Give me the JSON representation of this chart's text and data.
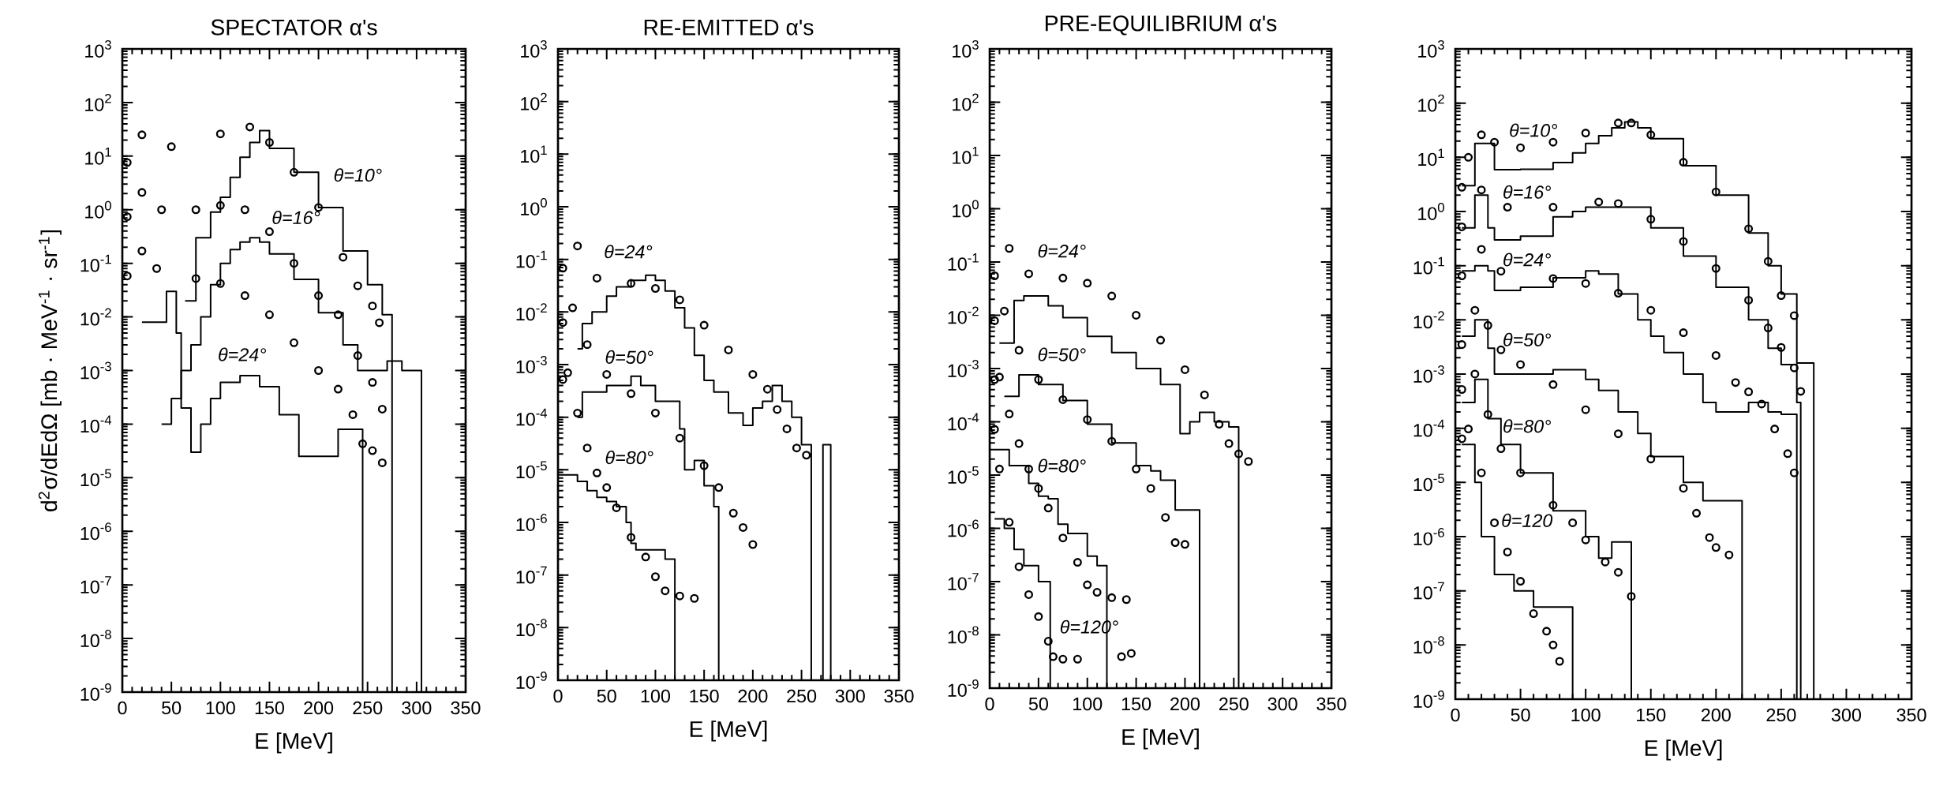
{
  "chart_data": [
    {
      "type": "scatter",
      "title": "SPECTATOR α's",
      "xlabel": "E [MeV]",
      "ylabel": "d$^{2}$σ/dEdΩ [mb · MeV$^{-1}$ · sr$^{-1}$]",
      "log": "y",
      "marker": "circle",
      "xlim": [
        0,
        350
      ],
      "ylim": [
        1e-09,
        1000
      ],
      "xticks": [
        0,
        50,
        100,
        150,
        200,
        250,
        300,
        350
      ],
      "yticks": [
        {
          "value": 1e-09,
          "label": "10$^{-9}$"
        },
        {
          "value": 1e-08,
          "label": "10$^{-8}$"
        },
        {
          "value": 1e-07,
          "label": "10$^{-7}$"
        },
        {
          "value": 1e-06,
          "label": "10$^{-6}$"
        },
        {
          "value": 1e-05,
          "label": "10$^{-5}$"
        },
        {
          "value": 0.0001,
          "label": "10$^{-4}$"
        },
        {
          "value": 0.001,
          "label": "10$^{-3}$"
        },
        {
          "value": 0.01,
          "label": "10$^{-2}$"
        },
        {
          "value": 0.1,
          "label": "10$^{-1}$"
        },
        {
          "value": 1,
          "label": "10$^{0}$"
        },
        {
          "value": 10,
          "label": "10$^{1}$"
        },
        {
          "value": 100,
          "label": "10$^{2}$"
        },
        {
          "value": 1000,
          "label": "10$^{3}$"
        }
      ],
      "series": [
        {
          "color": "#000000",
          "x": [
            5,
            20,
            50,
            100,
            130,
            150,
            175,
            200,
            225,
            240,
            255,
            262
          ],
          "values": [
            7.6,
            25,
            15,
            26,
            35,
            18,
            5,
            1.1,
            0.13,
            0.038,
            0.016,
            0.0078
          ]
        },
        {
          "color": "#000000",
          "x": [
            5,
            20,
            40,
            75,
            100,
            125,
            150,
            175,
            200,
            220,
            240,
            255,
            265
          ],
          "values": [
            0.74,
            2.1,
            1.0,
            1.0,
            1.2,
            1.0,
            0.39,
            0.1,
            0.025,
            0.011,
            0.0019,
            0.0006,
            0.00019
          ]
        },
        {
          "color": "#000000",
          "x": [
            5,
            20,
            35,
            75,
            100,
            125,
            150,
            175,
            200,
            220,
            235,
            245,
            255,
            265
          ],
          "values": [
            0.058,
            0.17,
            0.08,
            0.052,
            0.042,
            0.025,
            0.011,
            0.0033,
            0.001,
            0.00045,
            0.00015,
            4.3e-05,
            3.2e-05,
            1.9e-05
          ]
        },
        {
          "type": "step",
          "marker": "none",
          "color": "#000000",
          "x": [
            64,
            75,
            90,
            100,
            110,
            120,
            130,
            140,
            150,
            175,
            200,
            225,
            250,
            265,
            275
          ],
          "values": [
            0.02,
            0.3,
            0.9,
            1.7,
            4,
            9.5,
            18,
            30,
            14,
            5,
            1.1,
            0.17,
            0.04,
            0.011,
            1e-09
          ]
        },
        {
          "type": "step",
          "marker": "none",
          "color": "#000000",
          "x": [
            40,
            50,
            60,
            70,
            80,
            90,
            100,
            110,
            120,
            130,
            140,
            150,
            175,
            200,
            225,
            240,
            270,
            285,
            305
          ],
          "values": [
            0.0001,
            0.0003,
            0.001,
            0.003,
            0.01,
            0.04,
            0.1,
            0.18,
            0.25,
            0.3,
            0.25,
            0.15,
            0.05,
            0.012,
            0.003,
            0.001,
            0.0015,
            0.001,
            1e-09
          ]
        },
        {
          "type": "step",
          "marker": "none",
          "color": "#000000",
          "x": [
            20,
            45,
            55,
            60,
            70,
            80,
            90,
            100,
            120,
            140,
            160,
            180,
            200,
            220,
            245
          ],
          "values": [
            0.008,
            0.03,
            0.005,
            0.0002,
            3e-05,
            0.0001,
            0.0003,
            0.0006,
            0.0008,
            0.0005,
            0.00015,
            2.5e-05,
            2.5e-05,
            8e-05,
            1e-09
          ]
        }
      ],
      "annotations": [
        "θ=10°",
        "θ=16°",
        "θ=24°"
      ]
    },
    {
      "type": "scatter",
      "title": "RE-EMITTED α's",
      "xlabel": "E [MeV]",
      "log": "y",
      "marker": "circle",
      "xlim": [
        0,
        350
      ],
      "ylim": [
        1e-09,
        1000
      ],
      "xticks": [
        0,
        50,
        100,
        150,
        200,
        250,
        300,
        350
      ],
      "yticks": [
        {
          "value": 1e-09,
          "label": "10$^{-9}$"
        },
        {
          "value": 1e-08,
          "label": "10$^{-8}$"
        },
        {
          "value": 1e-07,
          "label": "10$^{-7}$"
        },
        {
          "value": 1e-06,
          "label": "10$^{-6}$"
        },
        {
          "value": 1e-05,
          "label": "10$^{-5}$"
        },
        {
          "value": 0.0001,
          "label": "10$^{-4}$"
        },
        {
          "value": 0.001,
          "label": "10$^{-3}$"
        },
        {
          "value": 0.01,
          "label": "10$^{-2}$"
        },
        {
          "value": 0.1,
          "label": "10$^{-1}$"
        },
        {
          "value": 1,
          "label": "10$^{0}$"
        },
        {
          "value": 10,
          "label": "10$^{1}$"
        },
        {
          "value": 100,
          "label": "10$^{2}$"
        },
        {
          "value": 1000,
          "label": "10$^{3}$"
        }
      ],
      "series": [
        {
          "color": "#000000",
          "x": [
            5,
            20,
            40,
            75,
            100,
            125,
            150,
            175,
            200,
            215,
            225,
            235,
            245,
            255
          ],
          "values": [
            0.068,
            0.18,
            0.044,
            0.035,
            0.028,
            0.017,
            0.0056,
            0.0019,
            0.00065,
            0.00034,
            0.00014,
            6e-05,
            2.6e-05,
            1.9e-05
          ]
        },
        {
          "color": "#000000",
          "x": [
            5,
            15,
            30,
            50,
            75,
            100,
            125,
            150,
            165,
            180,
            190,
            200
          ],
          "values": [
            0.0063,
            0.012,
            0.0024,
            0.00065,
            0.00028,
            0.00012,
            4e-05,
            1.2e-05,
            4.6e-06,
            1.5e-06,
            8e-07,
            3.8e-07
          ]
        },
        {
          "color": "#000000",
          "x": [
            5,
            10,
            20,
            30,
            40,
            50,
            60,
            75,
            90,
            100,
            110,
            125,
            140
          ],
          "values": [
            0.00052,
            0.0007,
            0.00012,
            2.6e-05,
            8.7e-06,
            4.6e-06,
            1.9e-06,
            5.2e-07,
            2.2e-07,
            9.3e-08,
            5e-08,
            4e-08,
            3.6e-08
          ]
        },
        {
          "type": "step",
          "marker": "none",
          "color": "#000000",
          "x": [
            20,
            25,
            35,
            50,
            60,
            75,
            90,
            100,
            110,
            120,
            130,
            140,
            150,
            160,
            175,
            190,
            200,
            210,
            220,
            230,
            240,
            250,
            260,
            272,
            280
          ],
          "values": [
            0.002,
            0.006,
            0.01,
            0.02,
            0.03,
            0.04,
            0.05,
            0.04,
            0.025,
            0.012,
            0.005,
            0.0015,
            0.0005,
            0.0003,
            0.00012,
            7e-05,
            0.00015,
            0.0002,
            0.0004,
            0.0002,
            0.0001,
            3e-05,
            1e-09,
            3e-05,
            1e-09
          ]
        },
        {
          "type": "step",
          "marker": "none",
          "color": "#000000",
          "x": [
            20,
            25,
            50,
            75,
            85,
            100,
            125,
            130,
            140,
            150,
            160,
            165
          ],
          "values": [
            0.0001,
            0.0003,
            0.0004,
            0.0006,
            0.0004,
            0.0002,
            6e-05,
            1e-05,
            1.5e-05,
            5e-06,
            2e-06,
            1e-09
          ]
        },
        {
          "type": "step",
          "marker": "none",
          "color": "#000000",
          "x": [
            5,
            20,
            30,
            40,
            50,
            60,
            70,
            75,
            80,
            110,
            120
          ],
          "values": [
            8e-06,
            6e-06,
            4e-06,
            3e-06,
            2.5e-06,
            2e-06,
            1e-06,
            4e-07,
            3e-07,
            2e-07,
            1e-09
          ]
        }
      ],
      "annotations": [
        "θ=24°",
        "θ=50°",
        "θ=80°"
      ]
    },
    {
      "type": "scatter",
      "title": "PRE-EQUILIBRIUM α's",
      "xlabel": "E [MeV]",
      "log": "y",
      "marker": "circle",
      "xlim": [
        0,
        350
      ],
      "ylim": [
        1e-09,
        1000
      ],
      "xticks": [
        0,
        50,
        100,
        150,
        200,
        250,
        300,
        350
      ],
      "yticks": [
        {
          "value": 1e-09,
          "label": "10$^{-9}$"
        },
        {
          "value": 1e-08,
          "label": "10$^{-8}$"
        },
        {
          "value": 1e-07,
          "label": "10$^{-7}$"
        },
        {
          "value": 1e-06,
          "label": "10$^{-6}$"
        },
        {
          "value": 1e-05,
          "label": "10$^{-5}$"
        },
        {
          "value": 0.0001,
          "label": "10$^{-4}$"
        },
        {
          "value": 0.001,
          "label": "10$^{-3}$"
        },
        {
          "value": 0.01,
          "label": "10$^{-2}$"
        },
        {
          "value": 0.1,
          "label": "10$^{-1}$"
        },
        {
          "value": 1,
          "label": "10$^{0}$"
        },
        {
          "value": 10,
          "label": "10$^{1}$"
        },
        {
          "value": 100,
          "label": "10$^{2}$"
        },
        {
          "value": 1000,
          "label": "10$^{3}$"
        }
      ],
      "series": [
        {
          "color": "#000000",
          "x": [
            5,
            20,
            40,
            75,
            100,
            125,
            150,
            175,
            200,
            220,
            235,
            245,
            255,
            265
          ],
          "values": [
            0.055,
            0.18,
            0.06,
            0.05,
            0.04,
            0.023,
            0.01,
            0.0034,
            0.00095,
            0.00032,
            9e-05,
            3.9e-05,
            2.5e-05,
            1.8e-05
          ]
        },
        {
          "color": "#000000",
          "x": [
            5,
            15,
            30,
            50,
            75,
            100,
            125,
            150,
            165,
            180,
            190,
            200
          ],
          "values": [
            0.0079,
            0.012,
            0.0022,
            0.00062,
            0.00026,
            0.00011,
            4.3e-05,
            1.3e-05,
            5.6e-06,
            1.6e-06,
            5.4e-07,
            5e-07
          ]
        },
        {
          "color": "#000000",
          "x": [
            5,
            10,
            20,
            30,
            40,
            50,
            60,
            75,
            90,
            100,
            110,
            125,
            140
          ],
          "values": [
            0.00062,
            0.00069,
            0.00014,
            3.9e-05,
            1.3e-05,
            5.6e-06,
            2.4e-06,
            6.6e-07,
            2.3e-07,
            8.7e-08,
            6.3e-08,
            5e-08,
            4.6e-08
          ]
        },
        {
          "color": "#000000",
          "x": [
            5,
            10,
            20,
            30,
            40,
            50,
            60,
            65,
            75,
            90,
            135,
            145
          ],
          "values": [
            7.2e-05,
            1.3e-05,
            1.3e-06,
            1.9e-07,
            5.7e-08,
            2.2e-08,
            7.6e-09,
            3.9e-09,
            3.5e-09,
            3.5e-09,
            3.9e-09,
            4.5e-09
          ]
        },
        {
          "type": "step",
          "marker": "none",
          "color": "#000000",
          "x": [
            10,
            25,
            35,
            60,
            75,
            100,
            125,
            150,
            175,
            195,
            205,
            215,
            230,
            245,
            255
          ],
          "values": [
            0.003,
            0.019,
            0.023,
            0.015,
            0.009,
            0.004,
            0.002,
            0.001,
            0.0005,
            6e-05,
            0.0001,
            0.00015,
            0.0001,
            8e-05,
            1e-09
          ]
        },
        {
          "type": "step",
          "marker": "none",
          "color": "#000000",
          "x": [
            15,
            30,
            50,
            75,
            100,
            125,
            150,
            165,
            175,
            190,
            215
          ],
          "values": [
            0.0003,
            0.00076,
            0.0005,
            0.00025,
            9e-05,
            4e-05,
            1.5e-05,
            1.2e-05,
            8e-06,
            2.2e-06,
            1e-09
          ]
        },
        {
          "type": "step",
          "marker": "none",
          "color": "#000000",
          "x": [
            5,
            20,
            40,
            50,
            60,
            70,
            80,
            100,
            110,
            120
          ],
          "values": [
            3e-05,
            1.5e-05,
            7e-06,
            4e-06,
            3.6e-06,
            1.2e-06,
            8e-07,
            3e-07,
            2e-07,
            1e-09
          ]
        },
        {
          "type": "step",
          "marker": "none",
          "color": "#000000",
          "x": [
            5,
            15,
            25,
            35,
            50,
            62
          ],
          "values": [
            1.5e-06,
            1e-06,
            4e-07,
            2e-07,
            1e-07,
            1e-09
          ]
        }
      ],
      "annotations": [
        "θ=24°",
        "θ=50°",
        "θ=80°",
        "θ=120°"
      ]
    },
    {
      "type": "scatter",
      "xlabel": "E [MeV]",
      "log": "y",
      "marker": "circle",
      "xlim": [
        0,
        350
      ],
      "ylim": [
        1e-09,
        1000
      ],
      "xticks": [
        0,
        50,
        100,
        150,
        200,
        250,
        300,
        350
      ],
      "yticks": [
        {
          "value": 1e-09,
          "label": "10$^{-9}$"
        },
        {
          "value": 1e-08,
          "label": "10$^{-8}$"
        },
        {
          "value": 1e-07,
          "label": "10$^{-7}$"
        },
        {
          "value": 1e-06,
          "label": "10$^{-6}$"
        },
        {
          "value": 1e-05,
          "label": "10$^{-5}$"
        },
        {
          "value": 0.0001,
          "label": "10$^{-4}$"
        },
        {
          "value": 0.001,
          "label": "10$^{-3}$"
        },
        {
          "value": 0.01,
          "label": "10$^{-2}$"
        },
        {
          "value": 0.1,
          "label": "10$^{-1}$"
        },
        {
          "value": 1,
          "label": "10$^{0}$"
        },
        {
          "value": 10,
          "label": "10$^{1}$"
        },
        {
          "value": 100,
          "label": "10$^{2}$"
        },
        {
          "value": 1000,
          "label": "10$^{3}$"
        }
      ],
      "series": [
        {
          "color": "#000000",
          "x": [
            5,
            10,
            20,
            30,
            50,
            75,
            100,
            125,
            135,
            150,
            175,
            200,
            225,
            240,
            250,
            260
          ],
          "values": [
            2.8,
            10,
            26,
            19,
            15,
            19,
            28,
            43,
            43,
            26,
            8.1,
            2.3,
            0.48,
            0.12,
            0.028,
            0.012
          ]
        },
        {
          "color": "#000000",
          "x": [
            5,
            20,
            40,
            75,
            110,
            125,
            150,
            175,
            200,
            225,
            240,
            250,
            260,
            265
          ],
          "values": [
            0.52,
            2.5,
            1.2,
            1.2,
            1.5,
            1.4,
            0.72,
            0.28,
            0.089,
            0.023,
            0.0071,
            0.0031,
            0.0013,
            0.00048
          ]
        },
        {
          "color": "#000000",
          "x": [
            5,
            20,
            35,
            75,
            100,
            125,
            150,
            175,
            200,
            215,
            225,
            235,
            245,
            255,
            260
          ],
          "values": [
            0.065,
            0.2,
            0.079,
            0.058,
            0.047,
            0.031,
            0.015,
            0.0058,
            0.0022,
            0.0007,
            0.00047,
            0.00028,
            9.7e-05,
            3.4e-05,
            1.5e-05
          ]
        },
        {
          "color": "#000000",
          "x": [
            5,
            15,
            25,
            35,
            50,
            75,
            100,
            125,
            150,
            175,
            185,
            195,
            200,
            210
          ],
          "values": [
            0.0035,
            0.015,
            0.0079,
            0.0028,
            0.0015,
            0.00064,
            0.00022,
            7.9e-05,
            2.7e-05,
            7.8e-06,
            2.7e-06,
            9.6e-07,
            6.3e-07,
            4.6e-07
          ]
        },
        {
          "color": "#000000",
          "x": [
            5,
            15,
            25,
            35,
            50,
            75,
            90,
            100,
            115,
            125,
            135
          ],
          "values": [
            0.00052,
            0.001,
            0.00018,
            4.2e-05,
            1.5e-05,
            3.8e-06,
            1.8e-06,
            8.7e-07,
            3.4e-07,
            2.2e-07,
            7.9e-08
          ]
        },
        {
          "color": "#000000",
          "x": [
            5,
            10,
            20,
            30,
            40,
            50,
            60,
            70,
            75,
            80
          ],
          "values": [
            6.4e-05,
            9.7e-05,
            1.5e-05,
            1.8e-06,
            5.2e-07,
            1.5e-07,
            3.8e-08,
            1.8e-08,
            1e-08,
            5e-09
          ]
        },
        {
          "type": "step",
          "marker": "none",
          "color": "#000000",
          "x": [
            5,
            15,
            30,
            50,
            75,
            90,
            100,
            110,
            120,
            130,
            140,
            150,
            175,
            200,
            225,
            240,
            250,
            262,
            275
          ],
          "values": [
            3,
            18,
            5.9,
            6,
            8,
            12,
            18,
            25,
            35,
            45,
            35,
            22,
            7,
            2,
            0.4,
            0.1,
            0.03,
            0.0016,
            1e-09
          ]
        },
        {
          "type": "step",
          "marker": "none",
          "color": "#000000",
          "x": [
            5,
            15,
            25,
            30,
            50,
            75,
            90,
            100,
            125,
            150,
            175,
            200,
            225,
            240,
            250,
            262,
            265
          ],
          "values": [
            0.5,
            2,
            0.5,
            0.3,
            0.35,
            0.8,
            1.0,
            1.2,
            1.2,
            0.5,
            0.15,
            0.04,
            0.01,
            0.003,
            0.0015,
            0.0003,
            1e-09
          ]
        },
        {
          "type": "step",
          "marker": "none",
          "color": "#000000",
          "x": [
            5,
            15,
            25,
            30,
            50,
            75,
            100,
            110,
            125,
            140,
            150,
            160,
            175,
            190,
            200,
            225,
            240,
            250,
            262
          ],
          "values": [
            0.08,
            0.1,
            0.08,
            0.035,
            0.04,
            0.06,
            0.08,
            0.07,
            0.03,
            0.01,
            0.005,
            0.0025,
            0.001,
            0.0003,
            0.0002,
            0.0003,
            0.0002,
            0.00018,
            1e-09
          ]
        },
        {
          "type": "step",
          "marker": "none",
          "color": "#000000",
          "x": [
            5,
            15,
            25,
            30,
            50,
            75,
            100,
            110,
            125,
            140,
            150,
            175,
            190,
            220
          ],
          "values": [
            0.005,
            0.01,
            0.003,
            0.001,
            0.001,
            0.0012,
            0.0008,
            0.0005,
            0.0002,
            8e-05,
            3e-05,
            1e-05,
            4.6e-06,
            1e-09
          ]
        },
        {
          "type": "step",
          "marker": "none",
          "color": "#000000",
          "x": [
            5,
            15,
            25,
            35,
            50,
            75,
            100,
            110,
            120,
            135
          ],
          "values": [
            0.0003,
            0.0008,
            0.00015,
            5e-05,
            1.5e-05,
            3e-06,
            1e-06,
            4e-07,
            8e-07,
            1e-09
          ]
        },
        {
          "type": "step",
          "marker": "none",
          "color": "#000000",
          "x": [
            5,
            15,
            20,
            30,
            45,
            60,
            90
          ],
          "values": [
            5e-05,
            1e-05,
            1e-06,
            2e-07,
            1e-07,
            5e-08,
            1e-09
          ]
        }
      ],
      "annotations": [
        "θ=10°",
        "θ=16°",
        "θ=24°",
        "θ=50°",
        "θ=80°",
        "θ=120"
      ]
    }
  ]
}
